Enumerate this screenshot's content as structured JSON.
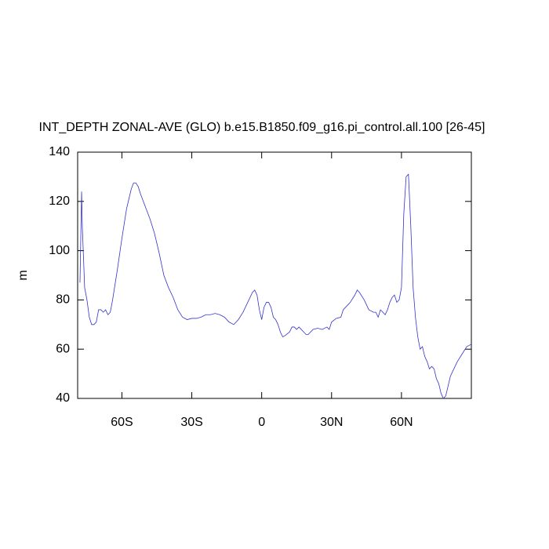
{
  "chart_data": {
    "type": "line",
    "title": "INT_DEPTH ZONAL-AVE (GLO) b.e15.B1850.f09_g16.pi_control.all.100 [26-45]",
    "ylabel": "m",
    "x": [
      -78,
      -77.3,
      -77,
      -76,
      -75,
      -74,
      -73,
      -72,
      -71,
      -70,
      -69,
      -68,
      -67,
      -66,
      -65,
      -64,
      -62,
      -60,
      -58,
      -56,
      -55,
      -54,
      -53,
      -52,
      -50,
      -48,
      -46,
      -44,
      -42,
      -40,
      -38,
      -36,
      -34,
      -32,
      -30,
      -28,
      -26,
      -24,
      -22,
      -20,
      -18,
      -16,
      -14,
      -12,
      -10,
      -8,
      -6,
      -4,
      -3,
      -2,
      -1,
      0,
      1,
      2,
      3,
      4,
      5,
      6,
      7,
      8,
      9,
      10,
      12,
      13,
      14,
      15,
      16,
      17,
      18,
      19,
      20,
      22,
      24,
      26,
      28,
      29,
      30,
      32,
      34,
      35,
      37,
      38,
      40,
      41,
      42,
      44,
      46,
      48,
      49,
      50,
      51,
      52,
      53,
      54,
      55,
      56,
      57,
      58,
      59,
      60,
      61,
      62,
      63,
      64,
      65,
      66,
      67,
      68,
      69,
      70,
      71,
      72,
      73,
      74,
      75,
      76,
      77,
      78,
      79,
      80,
      81,
      82,
      84,
      86,
      88,
      90
    ],
    "series": [
      {
        "name": "INT_DEPTH",
        "color": "#3333cc",
        "values": [
          87,
          124,
          110,
          85,
          80,
          73,
          70,
          70,
          71,
          76,
          76,
          75,
          76,
          74,
          75,
          80,
          92,
          105,
          117,
          125,
          127.5,
          127.5,
          126,
          123,
          118,
          113,
          107,
          99,
          90,
          85,
          81,
          76,
          73,
          72,
          72.5,
          72.5,
          73,
          74,
          74,
          74.5,
          74,
          73,
          71,
          70,
          72,
          75,
          79,
          83,
          84,
          82,
          76,
          72,
          77,
          79,
          79,
          77,
          73,
          72,
          70,
          67,
          65,
          65.5,
          67,
          69,
          69,
          68,
          69,
          68,
          67,
          66,
          66,
          68,
          68.5,
          68,
          69,
          68,
          71,
          72.5,
          73,
          76,
          78,
          79,
          82,
          84,
          83,
          80,
          76,
          75,
          75,
          73,
          76,
          75,
          74,
          76,
          79,
          81,
          82,
          79,
          80,
          85,
          115,
          130,
          131,
          110,
          85,
          73,
          65,
          60,
          61,
          57,
          55,
          52,
          53,
          52,
          48,
          46,
          42,
          40,
          41,
          45,
          49,
          51,
          55,
          58,
          61,
          62
        ]
      }
    ],
    "xlim": [
      -79,
      90
    ],
    "xticks": [
      {
        "value": -60,
        "label": "60S"
      },
      {
        "value": -30,
        "label": "30S"
      },
      0,
      {
        "value": 30,
        "label": "30N"
      },
      {
        "value": 60,
        "label": "60N"
      }
    ],
    "ylim": [
      40,
      140
    ],
    "yticks": [
      40,
      60,
      80,
      100,
      120,
      140
    ]
  }
}
